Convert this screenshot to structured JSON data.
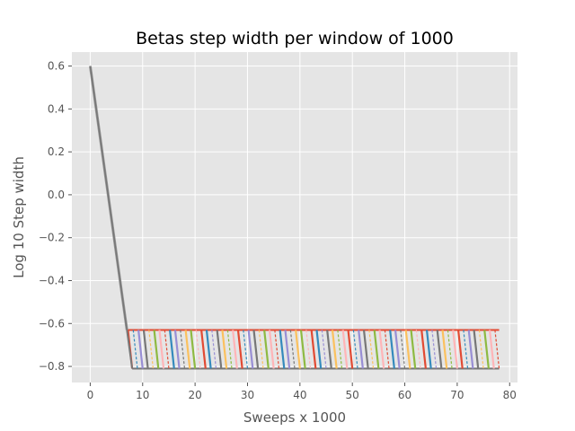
{
  "chart_data": {
    "type": "line",
    "title": "Betas step width per window of 1000",
    "xlabel": "Sweeps x 1000",
    "ylabel": "Log 10 Step width",
    "xlim": [
      -3.5,
      81.5
    ],
    "ylim": [
      -0.875,
      0.665
    ],
    "xticks": [
      0,
      10,
      20,
      30,
      40,
      50,
      60,
      70,
      80
    ],
    "yticks": [
      0.6,
      0.4,
      0.2,
      0.0,
      -0.2,
      -0.4,
      -0.6,
      -0.8
    ],
    "xtick_labels": [
      "0",
      "10",
      "20",
      "30",
      "40",
      "50",
      "60",
      "70",
      "80"
    ],
    "ytick_labels": [
      "0.6",
      "0.4",
      "0.2",
      "0.0",
      "−0.2",
      "−0.4",
      "−0.6",
      "−0.8"
    ],
    "grid": true,
    "style": "ggplot",
    "colors": {
      "background": "#e5e5e5",
      "grid": "#ffffff",
      "palette": [
        "#e24a33",
        "#348abd",
        "#988ed5",
        "#777777",
        "#fbc15e",
        "#8eba42",
        "#ffb5b8"
      ],
      "upper_line": "#e24a33",
      "lower_line": "#777777"
    },
    "series_summary": {
      "start": [
        0,
        0.6
      ],
      "initial_drop_end": [
        7,
        -0.63
      ],
      "upper_level": -0.63,
      "lower_level": -0.81,
      "upper_range": [
        7,
        78
      ],
      "lower_range": [
        8,
        78
      ],
      "diagonal_start_x": 8,
      "diagonal_end_x": 78,
      "diagonal_step": 1,
      "diagonal_run": 0.8
    }
  }
}
